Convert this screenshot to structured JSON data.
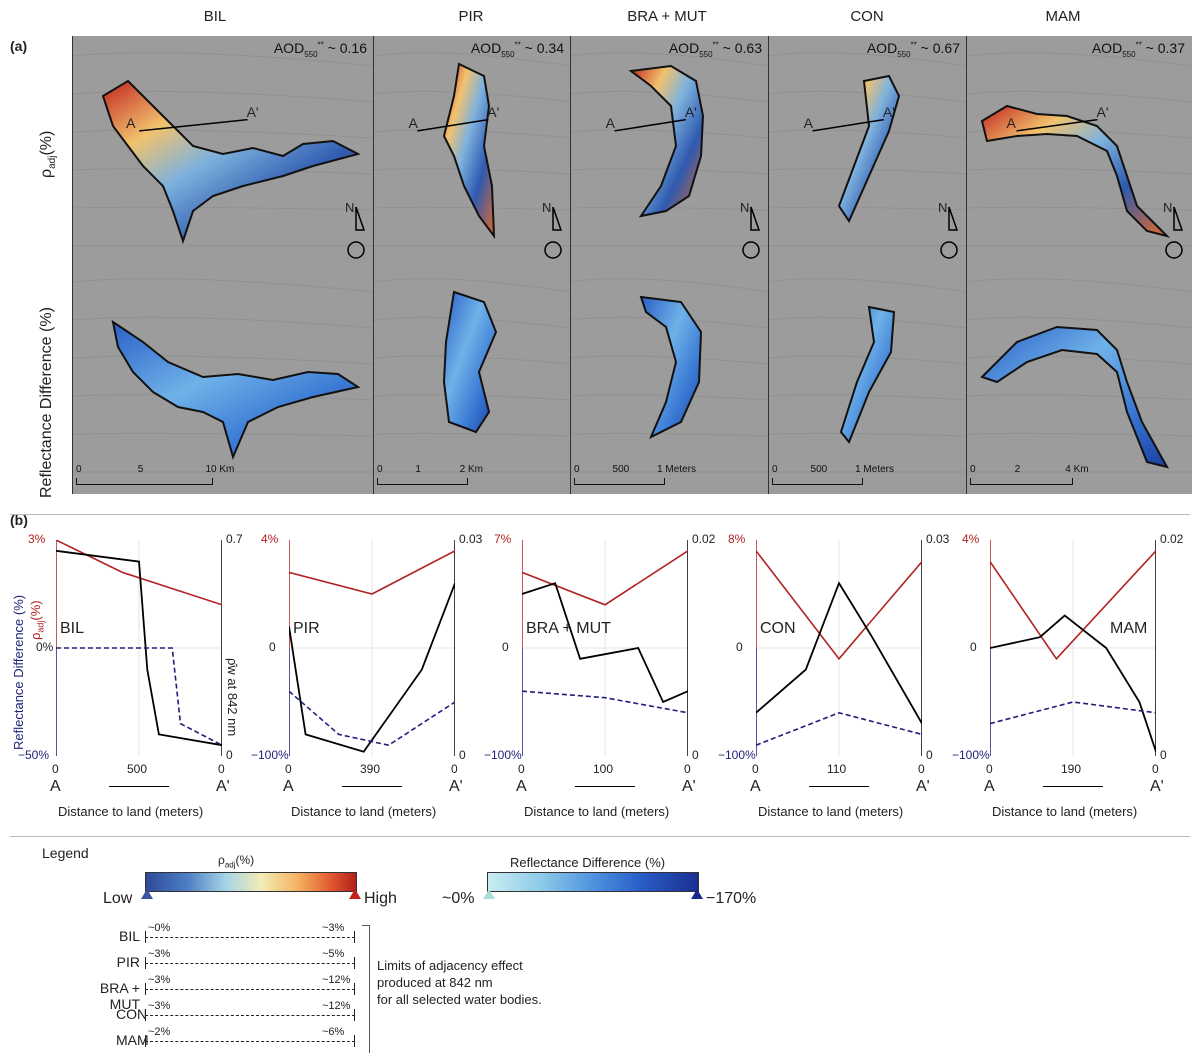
{
  "panel_a_label": "(a)",
  "panel_b_label": "(b)",
  "sites": [
    {
      "name": "BIL",
      "aod_value": "~ 0.16",
      "scale": {
        "ticks": [
          "0",
          "5",
          "10 Km"
        ]
      },
      "profile": {
        "name": "BIL",
        "x_mid": "500",
        "x_end": "0",
        "x_start": "0",
        "rho_top": "3%",
        "diff_bottom": "−50%",
        "diff_zero": "0%",
        "right_top": "0.7",
        "right_bottom": "0"
      }
    },
    {
      "name": "PIR",
      "aod_value": "~ 0.34",
      "scale": {
        "ticks": [
          "0",
          "1",
          "2 Km"
        ]
      },
      "profile": {
        "name": "PIR",
        "x_mid": "390",
        "x_end": "0",
        "x_start": "0",
        "rho_top": "4%",
        "diff_bottom": "−100%",
        "diff_zero": "0",
        "right_top": "0.03",
        "right_bottom": "0"
      }
    },
    {
      "name": "BRA + MUT",
      "aod_value": "~ 0.63",
      "scale": {
        "ticks": [
          "0",
          "500",
          "1 Meters"
        ]
      },
      "profile": {
        "name": "BRA + MUT",
        "x_mid": "100",
        "x_end": "0",
        "x_start": "0",
        "rho_top": "7%",
        "diff_bottom": "−100%",
        "diff_zero": "0",
        "right_top": "0.02",
        "right_bottom": "0"
      }
    },
    {
      "name": "CON",
      "aod_value": "~ 0.67",
      "scale": {
        "ticks": [
          "0",
          "500",
          "1 Meters"
        ]
      },
      "profile": {
        "name": "CON",
        "x_mid": "110",
        "x_end": "0",
        "x_start": "0",
        "rho_top": "8%",
        "diff_bottom": "−100%",
        "diff_zero": "0",
        "right_top": "0.03",
        "right_bottom": "0"
      }
    },
    {
      "name": "MAM",
      "aod_value": "~ 0.37",
      "scale": {
        "ticks": [
          "0",
          "2",
          "4 Km"
        ]
      },
      "profile": {
        "name": "MAM",
        "x_mid": "190",
        "x_end": "0",
        "x_start": "0",
        "rho_top": "4%",
        "diff_bottom": "−100%",
        "diff_zero": "0",
        "right_top": "0.02",
        "right_bottom": "0"
      }
    }
  ],
  "aod_label": "AOD",
  "aod_sup": "**",
  "aod_sub": "550",
  "row_label_top": "ρadj(%)",
  "row_label_bottom": "Reflectance Difference (%)",
  "north_letter": "N",
  "transect_start": "A",
  "transect_end": "A'",
  "y_left_red_label": "ρadj(%)",
  "y_left_blue_label": "Reflectance Difference (%)",
  "y_right_label": "ρ̂w at 842 nm",
  "x_axis_label": "Distance to land (meters)",
  "legend": {
    "title": "Legend",
    "rho_bar_title": "ρadj(%)",
    "rho_low": "Low",
    "rho_high": "High",
    "diff_bar_title": "Reflectance Difference (%)",
    "diff_low": "~0%",
    "diff_high": "−170%",
    "limits_note": [
      "Limits of adjacency effect",
      "produced at 842 nm",
      "for all selected water bodies."
    ],
    "limits": [
      {
        "site": "BIL",
        "low": "~0%",
        "high": "~3%"
      },
      {
        "site": "PIR",
        "low": "~3%",
        "high": "~5%"
      },
      {
        "site": "BRA + MUT",
        "low": "~3%",
        "high": "~12%"
      },
      {
        "site": "CON",
        "low": "~3%",
        "high": "~12%"
      },
      {
        "site": "MAM",
        "low": "~2%",
        "high": "~6%"
      }
    ]
  },
  "colors": {
    "rho_low": "#3a55a8",
    "rho_high": "#c0231e",
    "diff_low": "#bfe6ef",
    "diff_high": "#1a2a8a",
    "red_line": "#b22222",
    "blue_line": "#1f1f7a"
  }
}
